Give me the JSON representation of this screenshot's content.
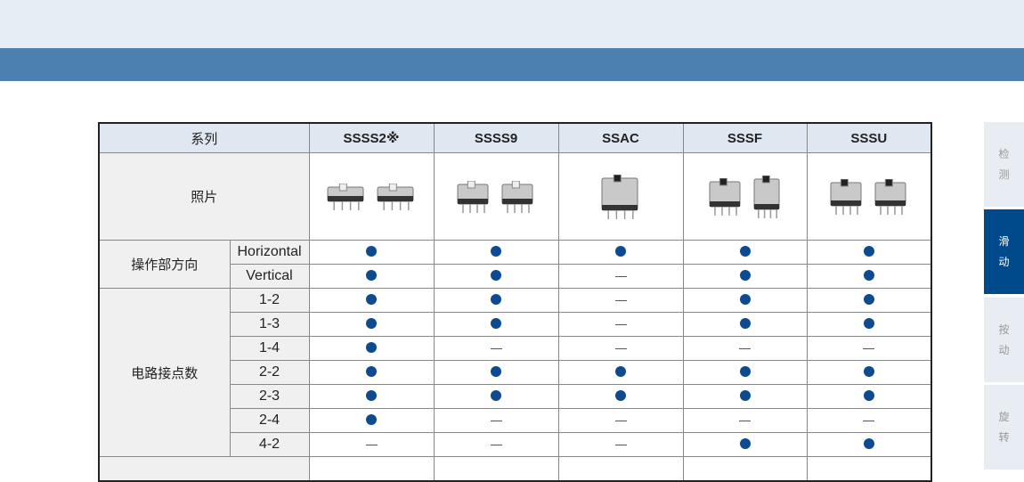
{
  "table": {
    "header_label": "系列",
    "series": [
      "SSSS2※",
      "SSSS9",
      "SSAC",
      "SSSF",
      "SSSU"
    ],
    "photo_label": "照片",
    "groups": [
      {
        "label": "操作部方向",
        "rows": [
          {
            "label": "Horizontal",
            "values": [
              "dot",
              "dot",
              "dot",
              "dot",
              "dot"
            ]
          },
          {
            "label": "Vertical",
            "values": [
              "dot",
              "dot",
              "dash",
              "dot",
              "dot"
            ]
          }
        ]
      },
      {
        "label": "电路接点数",
        "rows": [
          {
            "label": "1-2",
            "values": [
              "dot",
              "dot",
              "dash",
              "dot",
              "dot"
            ]
          },
          {
            "label": "1-3",
            "values": [
              "dot",
              "dot",
              "dash",
              "dot",
              "dot"
            ]
          },
          {
            "label": "1-4",
            "values": [
              "dot",
              "dash",
              "dash",
              "dash",
              "dash"
            ]
          },
          {
            "label": "2-2",
            "values": [
              "dot",
              "dot",
              "dot",
              "dot",
              "dot"
            ]
          },
          {
            "label": "2-3",
            "values": [
              "dot",
              "dot",
              "dot",
              "dot",
              "dot"
            ]
          },
          {
            "label": "2-4",
            "values": [
              "dot",
              "dash",
              "dash",
              "dash",
              "dash"
            ]
          },
          {
            "label": "4-2",
            "values": [
              "dash",
              "dash",
              "dash",
              "dot",
              "dot"
            ]
          }
        ]
      }
    ]
  },
  "side_tabs": [
    {
      "label": "检\n测",
      "active": false
    },
    {
      "label": "滑\n动",
      "active": true
    },
    {
      "label": "按\n动",
      "active": false
    },
    {
      "label": "旋\n转",
      "active": false
    }
  ],
  "colors": {
    "accent": "#004a8c",
    "dot": "#0d4a8f",
    "bar": "#4b80b0"
  }
}
